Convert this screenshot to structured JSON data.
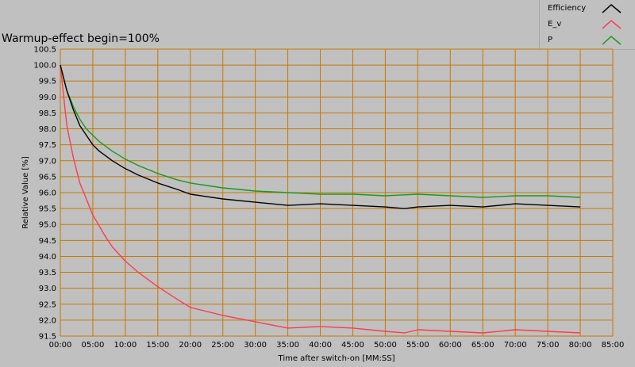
{
  "chart_data": {
    "type": "line",
    "title": "Warmup-effect begin=100%",
    "xlabel": "Time after switch-on [MM:SS]",
    "ylabel": "Relative Value [%]",
    "xlim": [
      0,
      85
    ],
    "ylim": [
      91.5,
      100.5
    ],
    "x_ticks": [
      "00:00",
      "05:00",
      "10:00",
      "15:00",
      "20:00",
      "25:00",
      "30:00",
      "35:00",
      "40:00",
      "45:00",
      "50:00",
      "55:00",
      "60:00",
      "65:00",
      "70:00",
      "75:00",
      "80:00",
      "85:00"
    ],
    "y_ticks": [
      "91.5",
      "92.0",
      "92.5",
      "93.0",
      "93.5",
      "94.0",
      "94.5",
      "95.0",
      "95.5",
      "96.0",
      "96.5",
      "97.0",
      "97.5",
      "98.0",
      "98.5",
      "99.0",
      "99.5",
      "100.0",
      "100.5"
    ],
    "grid": true,
    "legend_position": "top-right",
    "series": [
      {
        "name": "Efficiency",
        "color": "#000000",
        "x": [
          0,
          0.5,
          1,
          2,
          3,
          4,
          5,
          6,
          7,
          8,
          10,
          12,
          15,
          18,
          20,
          25,
          30,
          35,
          40,
          45,
          50,
          53,
          55,
          60,
          65,
          70,
          75,
          80
        ],
        "y": [
          100.0,
          99.6,
          99.2,
          98.6,
          98.1,
          97.8,
          97.5,
          97.3,
          97.15,
          97.0,
          96.75,
          96.55,
          96.3,
          96.1,
          95.95,
          95.8,
          95.7,
          95.6,
          95.65,
          95.6,
          95.55,
          95.5,
          95.55,
          95.6,
          95.55,
          95.65,
          95.6,
          95.55
        ]
      },
      {
        "name": "E_v",
        "color": "#ff3b4f",
        "x": [
          0,
          1,
          2,
          3,
          4,
          5,
          6,
          7,
          8,
          10,
          12,
          15,
          18,
          20,
          25,
          30,
          35,
          40,
          45,
          50,
          53,
          55,
          60,
          65,
          70,
          75,
          80
        ],
        "y": [
          100.0,
          98.1,
          97.1,
          96.3,
          95.8,
          95.3,
          94.95,
          94.6,
          94.3,
          93.85,
          93.5,
          93.05,
          92.65,
          92.4,
          92.15,
          91.95,
          91.75,
          91.8,
          91.75,
          91.65,
          91.6,
          91.7,
          91.65,
          91.6,
          91.7,
          91.65,
          91.6
        ]
      },
      {
        "name": "P",
        "color": "#1a9a1a",
        "x": [
          0,
          0.5,
          1,
          2,
          3,
          4,
          5,
          6,
          7,
          8,
          10,
          12,
          15,
          18,
          20,
          25,
          30,
          35,
          40,
          45,
          50,
          55,
          60,
          65,
          70,
          75,
          80
        ],
        "y": [
          100.0,
          99.6,
          99.2,
          98.7,
          98.3,
          98.0,
          97.8,
          97.6,
          97.45,
          97.3,
          97.05,
          96.85,
          96.6,
          96.4,
          96.3,
          96.15,
          96.05,
          96.0,
          95.95,
          95.95,
          95.9,
          95.95,
          95.9,
          95.85,
          95.9,
          95.9,
          95.85
        ]
      }
    ]
  }
}
